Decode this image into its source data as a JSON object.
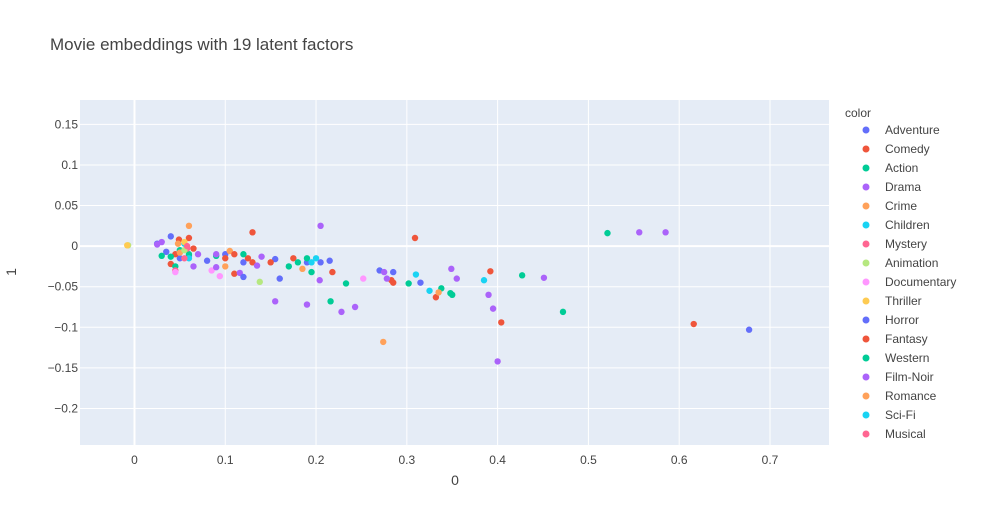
{
  "chart_data": {
    "type": "scatter",
    "title": "Movie embeddings with 19 latent factors",
    "xlabel": "0",
    "ylabel": "1",
    "xlim": [
      -0.06,
      0.765
    ],
    "ylim": [
      -0.245,
      0.18
    ],
    "xticks": [
      0,
      0.1,
      0.2,
      0.3,
      0.4,
      0.5,
      0.6,
      0.7
    ],
    "xtick_labels": [
      "0",
      "0.1",
      "0.2",
      "0.3",
      "0.4",
      "0.5",
      "0.6",
      "0.7"
    ],
    "yticks": [
      0.15,
      0.1,
      0.05,
      0,
      -0.05,
      -0.1,
      -0.15,
      -0.2
    ],
    "ytick_labels": [
      "0.15",
      "0.1",
      "0.05",
      "0",
      "−0.05",
      "−0.1",
      "−0.15",
      "−0.2"
    ],
    "grid": true,
    "legend_title": "color",
    "legend_position": "right",
    "series": [
      {
        "name": "Adventure",
        "color": "#636efa",
        "points": [
          [
            0.677,
            -0.103
          ],
          [
            0.04,
            0.012
          ],
          [
            0.06,
            -0.012
          ],
          [
            0.08,
            -0.018
          ],
          [
            0.155,
            -0.016
          ],
          [
            0.19,
            -0.02
          ],
          [
            0.205,
            -0.02
          ],
          [
            0.27,
            -0.03
          ],
          [
            0.285,
            -0.032
          ],
          [
            0.315,
            -0.045
          ],
          [
            0.05,
            -0.015
          ],
          [
            0.12,
            -0.02
          ],
          [
            0.025,
            0.003
          ],
          [
            0.035,
            -0.007
          ],
          [
            0.1,
            -0.01
          ],
          [
            0.215,
            -0.018
          ]
        ]
      },
      {
        "name": "Comedy",
        "color": "#ef553b",
        "points": [
          [
            0.616,
            -0.096
          ],
          [
            0.404,
            -0.094
          ],
          [
            0.392,
            -0.031
          ],
          [
            0.309,
            0.01
          ],
          [
            0.13,
            0.017
          ],
          [
            0.049,
            0.008
          ],
          [
            0.06,
            0.01
          ],
          [
            0.11,
            -0.034
          ],
          [
            0.15,
            -0.02
          ],
          [
            0.175,
            -0.015
          ],
          [
            0.218,
            -0.032
          ],
          [
            0.283,
            -0.042
          ],
          [
            0.332,
            -0.063
          ],
          [
            0.04,
            -0.022
          ],
          [
            0.065,
            -0.003
          ],
          [
            0.125,
            -0.015
          ],
          [
            0.1,
            -0.015
          ],
          [
            0.045,
            -0.01
          ],
          [
            0.13,
            -0.02
          ]
        ]
      },
      {
        "name": "Action",
        "color": "#00cc96",
        "points": [
          [
            0.521,
            0.016
          ],
          [
            0.472,
            -0.081
          ],
          [
            0.427,
            -0.036
          ],
          [
            0.348,
            -0.058
          ],
          [
            0.302,
            -0.046
          ],
          [
            0.233,
            -0.046
          ],
          [
            0.216,
            -0.068
          ],
          [
            0.195,
            -0.032
          ],
          [
            0.17,
            -0.025
          ],
          [
            0.12,
            -0.01
          ],
          [
            0.09,
            -0.012
          ],
          [
            0.05,
            -0.005
          ],
          [
            0.04,
            -0.013
          ],
          [
            0.03,
            -0.012
          ],
          [
            0.06,
            -0.01
          ],
          [
            0.19,
            -0.015
          ],
          [
            0.18,
            -0.02
          ],
          [
            0.338,
            -0.052
          ],
          [
            0.045,
            -0.025
          ]
        ]
      },
      {
        "name": "Drama",
        "color": "#ab63fa",
        "points": [
          [
            0.585,
            0.017
          ],
          [
            0.556,
            0.017
          ],
          [
            0.451,
            -0.039
          ],
          [
            0.4,
            -0.142
          ],
          [
            0.395,
            -0.077
          ],
          [
            0.39,
            -0.06
          ],
          [
            0.355,
            -0.04
          ],
          [
            0.349,
            -0.028
          ],
          [
            0.275,
            -0.032
          ],
          [
            0.243,
            -0.075
          ],
          [
            0.228,
            -0.081
          ],
          [
            0.205,
            0.025
          ],
          [
            0.204,
            -0.042
          ],
          [
            0.19,
            -0.072
          ],
          [
            0.155,
            -0.068
          ],
          [
            0.14,
            -0.013
          ],
          [
            0.135,
            -0.024
          ],
          [
            0.116,
            -0.033
          ],
          [
            0.09,
            -0.01
          ],
          [
            0.07,
            -0.01
          ],
          [
            0.065,
            -0.025
          ],
          [
            0.03,
            0.005
          ],
          [
            0.025,
            0.002
          ],
          [
            0.278,
            -0.04
          ]
        ]
      },
      {
        "name": "Crime",
        "color": "#ffa15a",
        "points": [
          [
            0.274,
            -0.118
          ],
          [
            0.06,
            0.025
          ],
          [
            0.048,
            0.003
          ],
          [
            0.05,
            -0.008
          ],
          [
            0.105,
            -0.006
          ],
          [
            0.185,
            -0.028
          ],
          [
            0.1,
            -0.025
          ]
        ]
      },
      {
        "name": "Children",
        "color": "#19d3f3",
        "points": [
          [
            0.385,
            -0.042
          ],
          [
            0.31,
            -0.035
          ],
          [
            0.325,
            -0.055
          ],
          [
            0.195,
            -0.02
          ],
          [
            0.055,
            0.003
          ],
          [
            0.06,
            -0.015
          ]
        ]
      },
      {
        "name": "Mystery",
        "color": "#ff6692",
        "points": [
          [
            0.045,
            -0.03
          ],
          [
            0.058,
            -0.003
          ],
          [
            0.055,
            -0.015
          ]
        ]
      },
      {
        "name": "Animation",
        "color": "#b6e880",
        "points": [
          [
            -0.007,
            0.001
          ],
          [
            0.138,
            -0.044
          ],
          [
            0.055,
            -0.005
          ]
        ]
      },
      {
        "name": "Documentary",
        "color": "#ff97ff",
        "points": [
          [
            0.252,
            -0.04
          ],
          [
            0.094,
            -0.037
          ],
          [
            0.085,
            -0.03
          ],
          [
            0.045,
            -0.032
          ]
        ]
      },
      {
        "name": "Thriller",
        "color": "#fecb52",
        "points": [
          [
            -0.008,
            0.001
          ],
          [
            0.055,
            0.005
          ]
        ]
      },
      {
        "name": "Horror",
        "color": "#636efa",
        "points": [
          [
            0.16,
            -0.04
          ],
          [
            0.12,
            -0.038
          ]
        ]
      },
      {
        "name": "Fantasy",
        "color": "#ef553b",
        "points": [
          [
            0.285,
            -0.045
          ],
          [
            0.11,
            -0.01
          ]
        ]
      },
      {
        "name": "Western",
        "color": "#00cc96",
        "points": [
          [
            0.35,
            -0.06
          ]
        ]
      },
      {
        "name": "Film-Noir",
        "color": "#ab63fa",
        "points": [
          [
            0.09,
            -0.026
          ]
        ]
      },
      {
        "name": "Romance",
        "color": "#ffa15a",
        "points": [
          [
            0.335,
            -0.057
          ]
        ]
      },
      {
        "name": "Sci-Fi",
        "color": "#19d3f3",
        "points": [
          [
            0.2,
            -0.015
          ]
        ]
      },
      {
        "name": "Musical",
        "color": "#ff6692",
        "points": [
          [
            0.058,
            0.0
          ]
        ]
      }
    ]
  }
}
